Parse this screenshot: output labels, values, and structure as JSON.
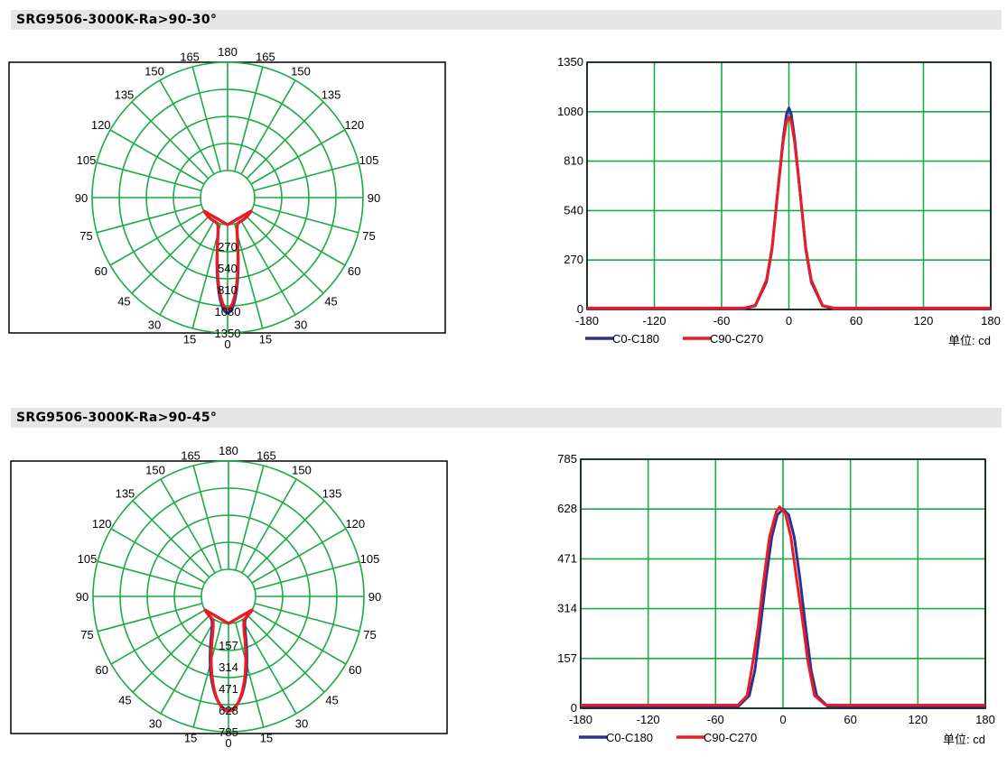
{
  "sections": [
    {
      "title": "SRG9506-3000K-Ra>90-30°"
    },
    {
      "title": "SRG9506-3000K-Ra>90-45°"
    }
  ],
  "colors": {
    "grid": "#1aab45",
    "series_c0": "#2e3192",
    "series_c90": "#ed1c24",
    "frame": "#000000"
  },
  "chart_data": [
    {
      "type": "polar",
      "section": 0,
      "angle_labels": [
        "180",
        "165",
        "150",
        "135",
        "120",
        "105",
        "90",
        "75",
        "60",
        "45",
        "30",
        "15",
        "0"
      ],
      "radial_ticks": [
        "270",
        "540",
        "810",
        "1080",
        "1350"
      ],
      "rmax": 1350,
      "series": [
        {
          "name": "C0-C180",
          "peak": 1100,
          "half_angle": 8.5
        },
        {
          "name": "C90-C270",
          "peak": 1050,
          "half_angle": 8.5
        }
      ]
    },
    {
      "type": "line",
      "section": 0,
      "x_ticks": [
        "-180",
        "-120",
        "-60",
        "0",
        "60",
        "120",
        "180"
      ],
      "y_ticks": [
        "0",
        "270",
        "540",
        "810",
        "1080",
        "1350"
      ],
      "xlim": [
        -180,
        180
      ],
      "ylim": [
        0,
        1350
      ],
      "legend": [
        {
          "name": "C0-C180"
        },
        {
          "name": "C90-C270"
        }
      ],
      "series": [
        {
          "name": "C0-C180",
          "x": [
            -180,
            -40,
            -30,
            -20,
            -15,
            -10,
            -5,
            -2,
            0,
            2,
            5,
            10,
            15,
            20,
            30,
            40,
            180
          ],
          "y": [
            5,
            5,
            20,
            150,
            330,
            640,
            940,
            1070,
            1100,
            1070,
            940,
            640,
            330,
            150,
            20,
            5,
            5
          ]
        },
        {
          "name": "C90-C270",
          "x": [
            -180,
            -40,
            -30,
            -20,
            -15,
            -10,
            -5,
            -2,
            0,
            2,
            5,
            10,
            15,
            20,
            30,
            40,
            180
          ],
          "y": [
            8,
            8,
            22,
            160,
            340,
            640,
            920,
            1030,
            1050,
            1030,
            920,
            640,
            340,
            160,
            22,
            8,
            8
          ]
        }
      ],
      "unit_label": "单位:  cd"
    },
    {
      "type": "polar",
      "section": 1,
      "angle_labels": [
        "180",
        "165",
        "150",
        "135",
        "120",
        "105",
        "90",
        "75",
        "60",
        "45",
        "30",
        "15",
        "0"
      ],
      "radial_ticks": [
        "157",
        "314",
        "471",
        "628",
        "785"
      ],
      "rmax": 785,
      "series": [
        {
          "name": "C0-C180",
          "peak": 628,
          "half_angle": 15
        },
        {
          "name": "C90-C270",
          "peak": 635,
          "half_angle": 14
        }
      ]
    },
    {
      "type": "line",
      "section": 1,
      "x_ticks": [
        "-180",
        "-120",
        "-60",
        "0",
        "60",
        "120",
        "180"
      ],
      "y_ticks": [
        "0",
        "157",
        "314",
        "471",
        "628",
        "785"
      ],
      "xlim": [
        -180,
        180
      ],
      "ylim": [
        0,
        785
      ],
      "legend": [
        {
          "name": "C0-C180"
        },
        {
          "name": "C90-C270"
        }
      ],
      "series": [
        {
          "name": "C0-C180",
          "x": [
            -180,
            -40,
            -30,
            -25,
            -20,
            -15,
            -10,
            -5,
            0,
            5,
            10,
            15,
            20,
            25,
            30,
            40,
            180
          ],
          "y": [
            5,
            5,
            40,
            120,
            260,
            410,
            540,
            610,
            628,
            610,
            540,
            410,
            260,
            120,
            40,
            5,
            5
          ]
        },
        {
          "name": "C90-C270",
          "x": [
            -180,
            -40,
            -32,
            -28,
            -22,
            -17,
            -12,
            -6,
            -3,
            2,
            7,
            12,
            18,
            22,
            28,
            38,
            180
          ],
          "y": [
            10,
            10,
            40,
            120,
            260,
            410,
            540,
            620,
            635,
            615,
            540,
            410,
            260,
            150,
            40,
            10,
            10
          ]
        }
      ],
      "unit_label": "单位:  cd"
    }
  ]
}
